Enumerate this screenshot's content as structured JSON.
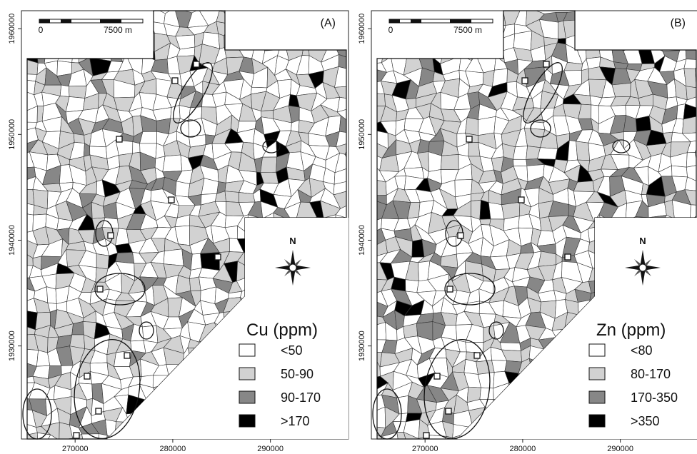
{
  "panels": [
    {
      "label": "(A)",
      "scale_bar": {
        "start": "0",
        "end": "7500 m"
      },
      "xlim": [
        264500,
        298000
      ],
      "ylim": [
        1921200,
        1961700
      ],
      "xticks": [
        270000,
        280000,
        290000
      ],
      "yticks": [
        1960000,
        1950000,
        1940000,
        1930000
      ],
      "north": "N",
      "legend": {
        "title": "Cu (ppm)",
        "items": [
          {
            "label": "<50",
            "color": "#ffffff"
          },
          {
            "label": "50-90",
            "color": "#d2d2d2"
          },
          {
            "label": "90-170",
            "color": "#878787"
          },
          {
            "label": ">170",
            "color": "#000000"
          }
        ]
      }
    },
    {
      "label": "(B)",
      "scale_bar": {
        "start": "0",
        "end": "7500 m"
      },
      "xlim": [
        264500,
        298000
      ],
      "ylim": [
        1921200,
        1961700
      ],
      "xticks": [
        270000,
        280000,
        290000
      ],
      "yticks": [
        1960000,
        1950000,
        1940000,
        1930000
      ],
      "north": "N",
      "legend": {
        "title": "Zn (ppm)",
        "items": [
          {
            "label": "<80",
            "color": "#ffffff"
          },
          {
            "label": "80-170",
            "color": "#d2d2d2"
          },
          {
            "label": "170-350",
            "color": "#878787"
          },
          {
            "label": ">350",
            "color": "#000000"
          }
        ]
      }
    }
  ]
}
